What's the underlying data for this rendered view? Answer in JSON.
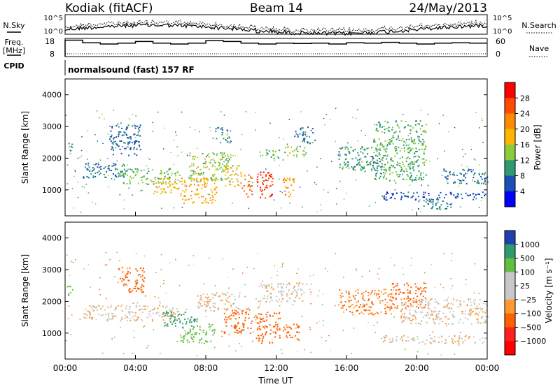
{
  "header": {
    "station": "Kodiak (fitACF)",
    "beam": "Beam 14",
    "date": "24/May/2013"
  },
  "noise_panel": {
    "left_label": "N.Sky",
    "right_label": "N.Search",
    "left_ticks": [
      "10^5",
      "10^0"
    ],
    "right_ticks": [
      "10^5",
      "10^0"
    ]
  },
  "freq_panel": {
    "left_label_1": "Freq.",
    "left_label_2": "[MHz]",
    "right_label": "Nave",
    "left_ticks": [
      "18",
      "8"
    ],
    "right_ticks": [
      "60",
      "0"
    ]
  },
  "cpid_panel": {
    "label": "CPID",
    "program": "normalsound (fast) 157 RF"
  },
  "power_panel": {
    "ylabel": "Slant Range [km]",
    "colorbar_label": "Power [dB]",
    "colorbar_ticks": [
      "28",
      "24",
      "20",
      "16",
      "12",
      "8",
      "4"
    ],
    "colorbar_colors": [
      "#ff0000",
      "#ff4a00",
      "#ff8a00",
      "#ffb400",
      "#8ccc3a",
      "#2e9a6e",
      "#1a50b4",
      "#0000ff"
    ]
  },
  "velocity_panel": {
    "ylabel": "Slant Range [km]",
    "colorbar_label": "Velocity [m s⁻¹]",
    "colorbar_ticks": [
      "1000",
      "500",
      "100",
      "25",
      "−25",
      "−100",
      "−500",
      "−1000"
    ],
    "colorbar_colors": [
      "#2040b0",
      "#2e9a6e",
      "#60c040",
      "#c8c8c8",
      "#c8c8c8",
      "#ff9a30",
      "#ff6000",
      "#ff2020",
      "#ff0000"
    ]
  },
  "x_axis": {
    "label": "Time UT",
    "ticks": [
      "00:00",
      "04:00",
      "08:00",
      "12:00",
      "16:00",
      "20:00",
      "00:00"
    ]
  },
  "chart_data": [
    {
      "type": "heatmap",
      "title": "Power [dB]",
      "xlabel": "",
      "ylabel": "Slant Range [km]",
      "x_ticks": [
        "00:00",
        "04:00",
        "08:00",
        "12:00",
        "16:00",
        "20:00",
        "00:00"
      ],
      "xlim_hours": [
        0,
        24
      ],
      "ylim": [
        180,
        4500
      ],
      "y_ticks": [
        1000,
        2000,
        3000,
        4000
      ],
      "color_range": [
        0,
        32
      ],
      "blobs": [
        {
          "t0": 0.1,
          "t1": 0.4,
          "r0": 2100,
          "r1": 2500,
          "v": 10
        },
        {
          "t0": 1.0,
          "t1": 3.5,
          "r0": 1400,
          "r1": 1900,
          "v": 8
        },
        {
          "t0": 2.5,
          "t1": 4.3,
          "r0": 2100,
          "r1": 3100,
          "v": 7
        },
        {
          "t0": 3.0,
          "t1": 6.5,
          "r0": 1200,
          "r1": 1700,
          "v": 13
        },
        {
          "t0": 5.0,
          "t1": 6.5,
          "r0": 900,
          "r1": 1400,
          "v": 18
        },
        {
          "t0": 6.5,
          "t1": 8.6,
          "r0": 600,
          "r1": 1400,
          "v": 20
        },
        {
          "t0": 7.0,
          "t1": 9.5,
          "r0": 1300,
          "r1": 2200,
          "v": 14
        },
        {
          "t0": 8.5,
          "t1": 9.4,
          "r0": 2500,
          "r1": 3000,
          "v": 10
        },
        {
          "t0": 9.0,
          "t1": 10.0,
          "r0": 1100,
          "r1": 1800,
          "v": 18
        },
        {
          "t0": 10.0,
          "t1": 10.6,
          "r0": 800,
          "r1": 1500,
          "v": 24
        },
        {
          "t0": 10.8,
          "t1": 11.8,
          "r0": 700,
          "r1": 1600,
          "v": 28
        },
        {
          "t0": 11.0,
          "t1": 12.2,
          "r0": 2000,
          "r1": 2300,
          "v": 12
        },
        {
          "t0": 12.3,
          "t1": 13.0,
          "r0": 800,
          "r1": 1400,
          "v": 22
        },
        {
          "t0": 12.3,
          "t1": 13.6,
          "r0": 2050,
          "r1": 2400,
          "v": 14
        },
        {
          "t0": 13.0,
          "t1": 14.2,
          "r0": 2500,
          "r1": 3000,
          "v": 8
        },
        {
          "t0": 15.5,
          "t1": 18.0,
          "r0": 1600,
          "r1": 2400,
          "v": 10
        },
        {
          "t0": 17.5,
          "t1": 20.5,
          "r0": 1300,
          "r1": 3200,
          "v": 11
        },
        {
          "t0": 18.0,
          "t1": 24.0,
          "r0": 700,
          "r1": 950,
          "v": 6
        },
        {
          "t0": 20.0,
          "t1": 22.0,
          "r0": 400,
          "r1": 700,
          "v": 9
        },
        {
          "t0": 21.5,
          "t1": 24.0,
          "r0": 1200,
          "r1": 1700,
          "v": 7
        }
      ]
    },
    {
      "type": "heatmap",
      "title": "Velocity [m s⁻¹]",
      "xlabel": "Time UT",
      "ylabel": "Slant Range [km]",
      "x_ticks": [
        "00:00",
        "04:00",
        "08:00",
        "12:00",
        "16:00",
        "20:00",
        "00:00"
      ],
      "xlim_hours": [
        0,
        24
      ],
      "ylim": [
        180,
        4500
      ],
      "y_ticks": [
        1000,
        2000,
        3000,
        4000
      ],
      "color_levels": [
        -1000,
        -500,
        -100,
        -25,
        25,
        100,
        500,
        1000
      ],
      "blobs": [
        {
          "t0": 0.1,
          "t1": 0.4,
          "r0": 2100,
          "r1": 2500,
          "v": 300
        },
        {
          "t0": 1.0,
          "t1": 6.5,
          "r0": 1400,
          "r1": 1900,
          "v": 0
        },
        {
          "t0": 3.0,
          "t1": 4.5,
          "r0": 2300,
          "r1": 3100,
          "v": -200
        },
        {
          "t0": 5.5,
          "t1": 7.5,
          "r0": 1200,
          "r1": 1700,
          "v": 600
        },
        {
          "t0": 6.5,
          "t1": 8.5,
          "r0": 700,
          "r1": 1300,
          "v": 150
        },
        {
          "t0": 7.5,
          "t1": 10.0,
          "r0": 1700,
          "r1": 2300,
          "v": -10
        },
        {
          "t0": 9.0,
          "t1": 10.6,
          "r0": 1000,
          "r1": 1800,
          "v": -300
        },
        {
          "t0": 10.8,
          "t1": 12.2,
          "r0": 700,
          "r1": 1700,
          "v": -300
        },
        {
          "t0": 11.0,
          "t1": 14.0,
          "r0": 2000,
          "r1": 2600,
          "v": 0
        },
        {
          "t0": 12.3,
          "t1": 13.3,
          "r0": 800,
          "r1": 1300,
          "v": -400
        },
        {
          "t0": 15.5,
          "t1": 18.5,
          "r0": 1600,
          "r1": 2400,
          "v": -100
        },
        {
          "t0": 18.5,
          "t1": 20.5,
          "r0": 1800,
          "r1": 2600,
          "v": -400
        },
        {
          "t0": 19.0,
          "t1": 24.0,
          "r0": 1300,
          "r1": 2100,
          "v": 0
        },
        {
          "t0": 18.0,
          "t1": 24.0,
          "r0": 700,
          "r1": 950,
          "v": 10
        }
      ]
    }
  ]
}
